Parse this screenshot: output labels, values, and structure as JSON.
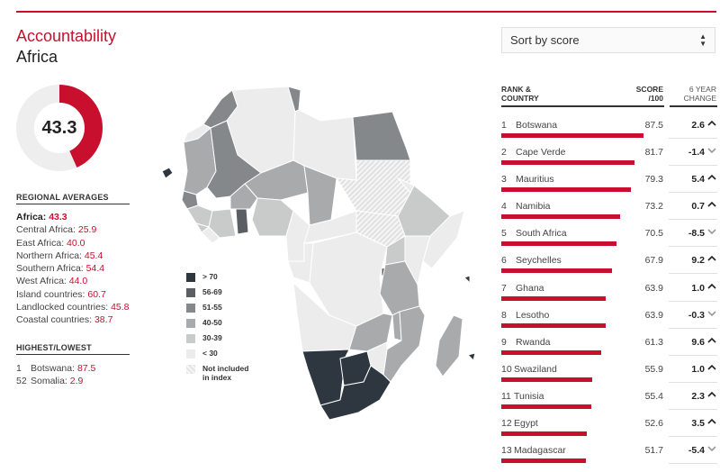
{
  "header": {
    "title": "Accountability",
    "subtitle": "Africa"
  },
  "overall": {
    "score": "43.3",
    "fraction": 0.433,
    "colors": {
      "fill": "#c8102e",
      "track": "#eeeeee"
    }
  },
  "regional": {
    "heading": "REGIONAL AVERAGES",
    "main": {
      "label": "Africa:",
      "value": "43.3"
    },
    "items": [
      {
        "label": "Central Africa:",
        "value": "25.9"
      },
      {
        "label": "East Africa:",
        "value": "40.0"
      },
      {
        "label": "Northern Africa:",
        "value": "45.4"
      },
      {
        "label": "Southern Africa:",
        "value": "54.4"
      },
      {
        "label": "West Africa:",
        "value": "44.0"
      },
      {
        "label": "Island countries:",
        "value": "60.7"
      },
      {
        "label": "Landlocked countries:",
        "value": "45.8"
      },
      {
        "label": "Coastal countries:",
        "value": "38.7"
      }
    ]
  },
  "highlow": {
    "heading": "HIGHEST/LOWEST",
    "items": [
      {
        "rank": "1",
        "country": "Botswana:",
        "score": "87.5"
      },
      {
        "rank": "52",
        "country": "Somalia:",
        "score": "2.9"
      }
    ]
  },
  "legend": {
    "items": [
      {
        "label": "> 70",
        "color": "#2e3740"
      },
      {
        "label": "56-69",
        "color": "#5b5f63"
      },
      {
        "label": "51-55",
        "color": "#85888b"
      },
      {
        "label": "40-50",
        "color": "#a8aaac"
      },
      {
        "label": "30-39",
        "color": "#c9caca"
      },
      {
        "label": "< 30",
        "color": "#ececec"
      }
    ],
    "excluded": {
      "line1": "Not included",
      "line2": "in index"
    }
  },
  "sort": {
    "label": "Sort by score",
    "icon": "sort-arrows-icon"
  },
  "table": {
    "headers": {
      "rank_country_1": "RANK &",
      "rank_country_2": "COUNTRY",
      "score_1": "SCORE",
      "score_2": "/100",
      "change_1": "6 YEAR",
      "change_2": "CHANGE"
    },
    "colors": {
      "bar": "#c8102e",
      "arrow": "#333333"
    },
    "rows": [
      {
        "rank": "1",
        "country": "Botswana",
        "score": "87.5",
        "value": 87.5,
        "change": "2.6",
        "direction": "up"
      },
      {
        "rank": "2",
        "country": "Cape Verde",
        "score": "81.7",
        "value": 81.7,
        "change": "-1.4",
        "direction": "down"
      },
      {
        "rank": "3",
        "country": "Mauritius",
        "score": "79.3",
        "value": 79.3,
        "change": "5.4",
        "direction": "up"
      },
      {
        "rank": "4",
        "country": "Namibia",
        "score": "73.2",
        "value": 73.2,
        "change": "0.7",
        "direction": "up"
      },
      {
        "rank": "5",
        "country": "South Africa",
        "score": "70.5",
        "value": 70.5,
        "change": "-8.5",
        "direction": "down"
      },
      {
        "rank": "6",
        "country": "Seychelles",
        "score": "67.9",
        "value": 67.9,
        "change": "9.2",
        "direction": "up"
      },
      {
        "rank": "7",
        "country": "Ghana",
        "score": "63.9",
        "value": 63.9,
        "change": "1.0",
        "direction": "up"
      },
      {
        "rank": "8",
        "country": "Lesotho",
        "score": "63.9",
        "value": 63.9,
        "change": "-0.3",
        "direction": "down"
      },
      {
        "rank": "9",
        "country": "Rwanda",
        "score": "61.3",
        "value": 61.3,
        "change": "9.6",
        "direction": "up"
      },
      {
        "rank": "10",
        "country": "Swaziland",
        "score": "55.9",
        "value": 55.9,
        "change": "1.0",
        "direction": "up"
      },
      {
        "rank": "11",
        "country": "Tunisia",
        "score": "55.4",
        "value": 55.4,
        "change": "2.3",
        "direction": "up"
      },
      {
        "rank": "12",
        "country": "Egypt",
        "score": "52.6",
        "value": 52.6,
        "change": "3.5",
        "direction": "up"
      },
      {
        "rank": "13",
        "country": "Madagascar",
        "score": "51.7",
        "value": 51.7,
        "change": "-5.4",
        "direction": "down"
      }
    ]
  }
}
